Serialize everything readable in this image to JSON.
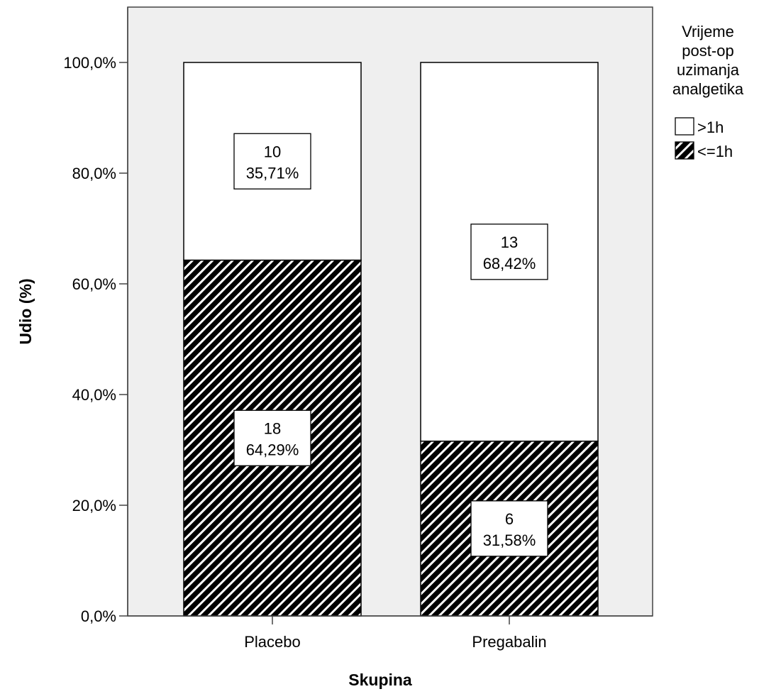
{
  "chart_data": {
    "type": "bar",
    "stacked": true,
    "xlabel": "Skupina",
    "ylabel": "Udio (%)",
    "categories": [
      "Placebo",
      "Pregabalin"
    ],
    "ylim": [
      0,
      110
    ],
    "yticks": [
      0,
      20,
      40,
      60,
      80,
      100
    ],
    "ytick_labels": [
      "0,0%",
      "20,0%",
      "40,0%",
      "60,0%",
      "80,0%",
      "100,0%"
    ],
    "legend": {
      "title_lines": [
        "Vrijeme",
        "post-op",
        "uzimanja",
        "analgetika"
      ],
      "position": "right",
      "entries": [
        {
          "label": ">1h",
          "pattern": "white"
        },
        {
          "label": "<=1h",
          "pattern": "hatched"
        }
      ]
    },
    "series": [
      {
        "name": "<=1h",
        "pattern": "hatched",
        "values": [
          64.29,
          31.58
        ],
        "counts": [
          "18",
          "6"
        ],
        "percent_labels": [
          "64,29%",
          "31,58%"
        ]
      },
      {
        "name": ">1h",
        "pattern": "white",
        "values": [
          35.71,
          68.42
        ],
        "counts": [
          "10",
          "13"
        ],
        "percent_labels": [
          "35,71%",
          "68,42%"
        ]
      }
    ],
    "plot_background": "#efefef",
    "grid": false
  }
}
